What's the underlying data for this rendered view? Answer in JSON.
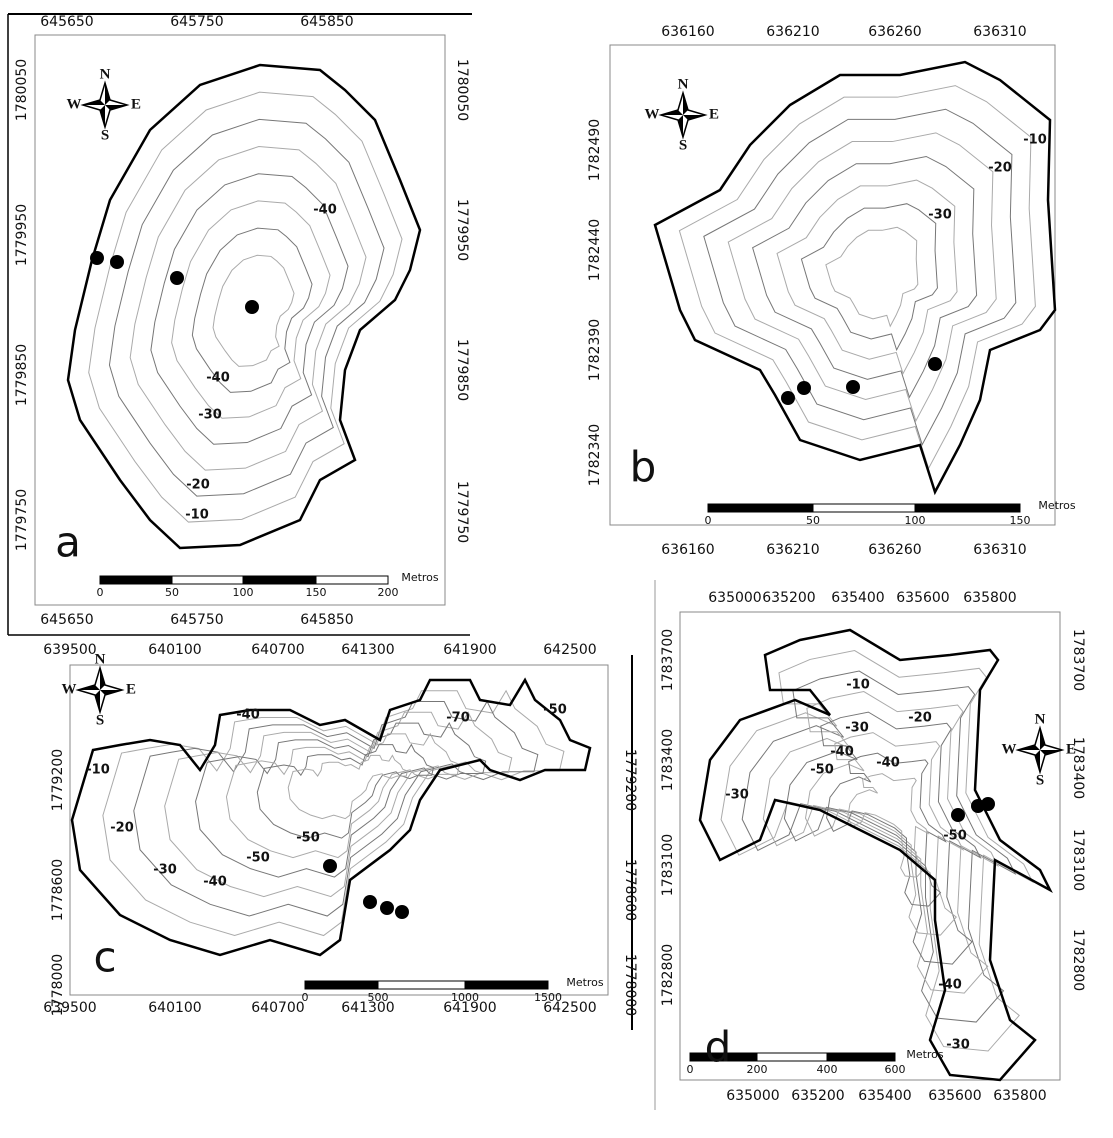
{
  "panels": [
    {
      "label": "a",
      "top_ticks": [
        "645650",
        "645750",
        "645850"
      ],
      "bottom_ticks": [
        "645650",
        "645750",
        "645850"
      ],
      "left_ticks": [
        "1780050",
        "1779950",
        "1779850",
        "1779750"
      ],
      "right_ticks": [
        "1780050",
        "1779950",
        "1779850",
        "1779750"
      ],
      "compass": {
        "n": "N",
        "s": "S",
        "w": "W",
        "e": "E"
      },
      "contour_labels": [
        "-40",
        "-40",
        "-30",
        "-20",
        "-10"
      ],
      "scale_labels": [
        "0",
        "50",
        "100",
        "150",
        "200"
      ],
      "scale_unit": "Metros"
    },
    {
      "label": "b",
      "top_ticks": [
        "636160",
        "636210",
        "636260",
        "636310"
      ],
      "bottom_ticks": [
        "636160",
        "636210",
        "636260",
        "636310"
      ],
      "left_ticks": [
        "1782490",
        "1782440",
        "1782390",
        "1782340"
      ],
      "compass": {
        "n": "N",
        "s": "S",
        "w": "W",
        "e": "E"
      },
      "contour_labels": [
        "-10",
        "-20",
        "-30"
      ],
      "scale_labels": [
        "0",
        "50",
        "100",
        "150"
      ],
      "scale_unit": "Metros"
    },
    {
      "label": "c",
      "top_ticks": [
        "639500",
        "640100",
        "640700",
        "641300",
        "641900",
        "642500"
      ],
      "bottom_ticks": [
        "639500",
        "640100",
        "640700",
        "641300",
        "641900",
        "642500"
      ],
      "left_ticks": [
        "1779200",
        "1778600",
        "1778000"
      ],
      "right_ticks": [
        "1779200",
        "1778600",
        "1778000"
      ],
      "compass": {
        "n": "N",
        "s": "S",
        "w": "W",
        "e": "E"
      },
      "contour_labels": [
        "-10",
        "-20",
        "-30",
        "-40",
        "-50",
        "-40",
        "-50",
        "-70",
        "-50"
      ],
      "scale_labels": [
        "0",
        "500",
        "1000",
        "1500"
      ],
      "scale_unit": "Metros"
    },
    {
      "label": "d",
      "top_ticks": [
        "635000",
        "635200",
        "635400",
        "635600",
        "635800"
      ],
      "bottom_ticks": [
        "635000",
        "635200",
        "635400",
        "635600",
        "635800"
      ],
      "left_ticks": [
        "1783700",
        "1783400",
        "1783100",
        "1782800"
      ],
      "right_ticks": [
        "1783700",
        "1783400",
        "1783100",
        "1782800"
      ],
      "compass": {
        "n": "N",
        "s": "S",
        "w": "W",
        "e": "E"
      },
      "contour_labels": [
        "-10",
        "-20",
        "-30",
        "-40",
        "-50",
        "-40",
        "-30",
        "-50",
        "-40",
        "-30"
      ],
      "scale_labels": [
        "0",
        "200",
        "400",
        "600"
      ],
      "scale_unit": "Metros"
    }
  ]
}
